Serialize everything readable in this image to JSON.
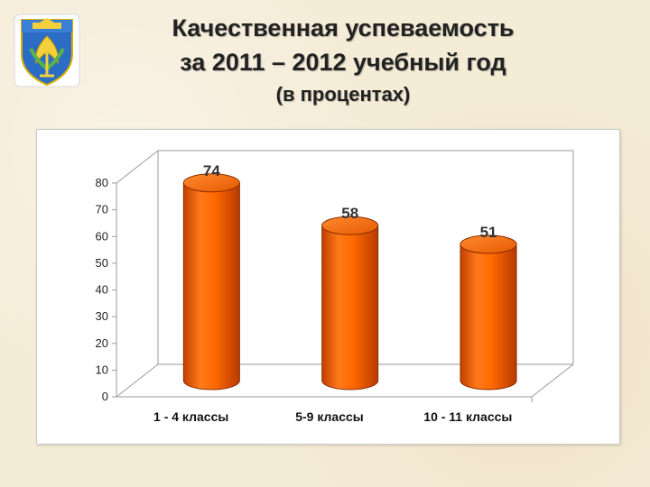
{
  "slide": {
    "title_line1": "Качественная успеваемость",
    "title_line2": "за 2011 – 2012  учебный год",
    "title_line3": "(в процентах)",
    "emblem_icon": "municipal-coat-of-arms-icon"
  },
  "colors": {
    "bar": "#ff6a00",
    "bar_dark": "#c84300",
    "grid": "#9a9a9a"
  },
  "chart_data": {
    "type": "bar",
    "style": "3d-cylinder",
    "categories": [
      "1 - 4 классы",
      "5-9 классы",
      "10 - 11 классы"
    ],
    "values": [
      74,
      58,
      51
    ],
    "data_labels": [
      "74",
      "58",
      "51"
    ],
    "ylim": [
      0,
      80
    ],
    "yticks": [
      0,
      10,
      20,
      30,
      40,
      50,
      60,
      70,
      80
    ],
    "grid": false,
    "legend": "none"
  }
}
